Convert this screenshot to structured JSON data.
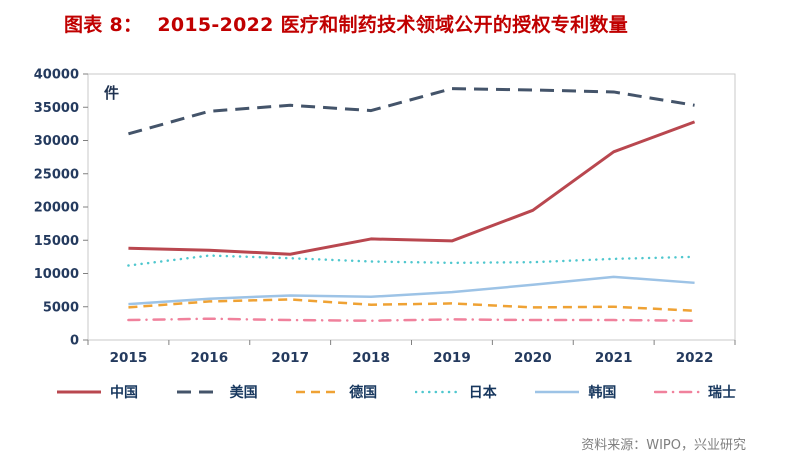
{
  "title": {
    "label": "图表 8：",
    "text": "2015-2022 医疗和制药技术领域公开的授权专利数量"
  },
  "source": "资料来源：WIPO，兴业研究",
  "chart_data": {
    "type": "line",
    "unit_label": "件",
    "x_labels": [
      "2015",
      "2016",
      "2017",
      "2018",
      "2019",
      "2020",
      "2021",
      "2022"
    ],
    "ylim": [
      0,
      40000
    ],
    "ytick_step": 5000,
    "grid": false,
    "legend_position": "bottom",
    "series": [
      {
        "name": "中国",
        "color": "#b9474f",
        "style": "solid",
        "width": 3,
        "values": [
          13800,
          13500,
          12900,
          15200,
          14900,
          19500,
          28300,
          32800
        ]
      },
      {
        "name": "美国",
        "color": "#44546a",
        "style": "dashed-long",
        "width": 3,
        "values": [
          31000,
          34400,
          35300,
          34500,
          37800,
          37600,
          37300,
          35300
        ]
      },
      {
        "name": "德国",
        "color": "#efa234",
        "style": "dashed",
        "width": 2.5,
        "values": [
          4900,
          5800,
          6100,
          5300,
          5500,
          4900,
          5000,
          4400
        ]
      },
      {
        "name": "日本",
        "color": "#4fc7ce",
        "style": "dotted",
        "width": 2.5,
        "values": [
          11200,
          12700,
          12300,
          11800,
          11600,
          11700,
          12200,
          12500
        ]
      },
      {
        "name": "韩国",
        "color": "#9dc3e6",
        "style": "solid",
        "width": 2.5,
        "values": [
          5400,
          6200,
          6700,
          6500,
          7200,
          8300,
          9500,
          8600
        ]
      },
      {
        "name": "瑞士",
        "color": "#f0819c",
        "style": "dash-dot",
        "width": 2.5,
        "values": [
          3000,
          3200,
          3000,
          2900,
          3100,
          3000,
          3000,
          2900
        ]
      }
    ]
  }
}
